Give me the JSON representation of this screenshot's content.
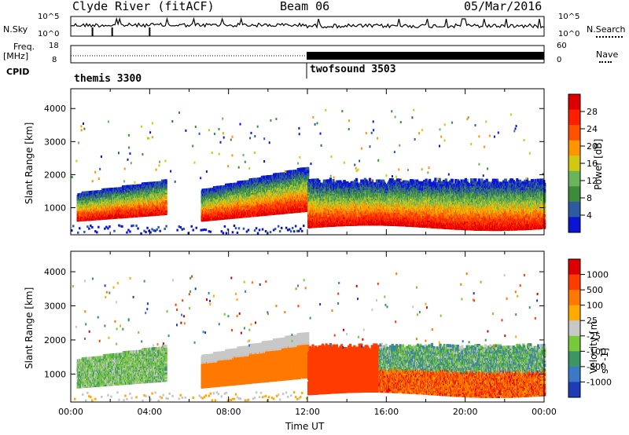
{
  "header": {
    "station": "Clyde River (fitACF)",
    "beam": "Beam 06",
    "date": "05/Mar/2016"
  },
  "summary": {
    "nsky_label": "N.Sky",
    "nsky_ticks": [
      "10^5",
      "10^0"
    ],
    "nsearch_label": "N.Search",
    "nsearch_ticks": [
      "10^5",
      "10^0"
    ],
    "freq_label_1": "Freq.",
    "freq_label_2": "[MHz]",
    "freq_ticks": [
      "18",
      "8"
    ],
    "nave_label": "Nave",
    "nave_ticks": [
      "60",
      "0"
    ],
    "cpid_label": "CPID",
    "cpid_segments": [
      {
        "name": "themis 3300",
        "start_hour": 0,
        "end_hour": 12
      },
      {
        "name": "twofsound 3503",
        "start_hour": 12,
        "end_hour": 24
      }
    ]
  },
  "colors": {
    "power_scale": [
      "#0a14d2",
      "#2d5aa0",
      "#3c8c3c",
      "#6ab45a",
      "#d2c814",
      "#ff9600",
      "#ff5000",
      "#ff1e00",
      "#dc0000"
    ],
    "velocity_scale": [
      "#1e3cb4",
      "#3c78c8",
      "#3c9664",
      "#78c83c",
      "#c8c8c8",
      "#ffaa00",
      "#ff7800",
      "#ff3c00",
      "#dc0000"
    ]
  },
  "chart_data": [
    {
      "type": "heatmap",
      "name": "power",
      "xlabel": "",
      "ylabel": "Slant Range [km]",
      "xlim_hours": [
        0,
        24
      ],
      "ylim_km": [
        180,
        4600
      ],
      "yticks": [
        "1000",
        "2000",
        "3000",
        "4000"
      ],
      "colorbar_label": "Power [dB]",
      "colorbar_ticks": [
        "4",
        "8",
        "12",
        "16",
        "20",
        "24",
        "28"
      ],
      "scatter_regions": [
        {
          "hours": [
            0.3,
            4.8
          ],
          "range_km": [
            600,
            1900
          ],
          "peak": "high-near"
        },
        {
          "hours": [
            6.6,
            12.0
          ],
          "range_km": [
            600,
            2200
          ],
          "peak": "high-near"
        },
        {
          "hours": [
            12.0,
            24.0
          ],
          "range_km": [
            300,
            1800
          ],
          "peak": "high-near"
        }
      ]
    },
    {
      "type": "heatmap",
      "name": "velocity",
      "xlabel": "Time UT",
      "ylabel": "Slant Range [km]",
      "xlim_hours": [
        0,
        24
      ],
      "ylim_km": [
        180,
        4600
      ],
      "xticks": [
        "00:00",
        "04:00",
        "08:00",
        "12:00",
        "16:00",
        "20:00",
        "00:00"
      ],
      "yticks": [
        "1000",
        "2000",
        "3000",
        "4000"
      ],
      "colorbar_label": "Velocity [m s^-1]",
      "colorbar_ticks": [
        "1000",
        "500",
        "100",
        "25",
        "-25",
        "-100",
        "-500",
        "-1000"
      ]
    }
  ]
}
